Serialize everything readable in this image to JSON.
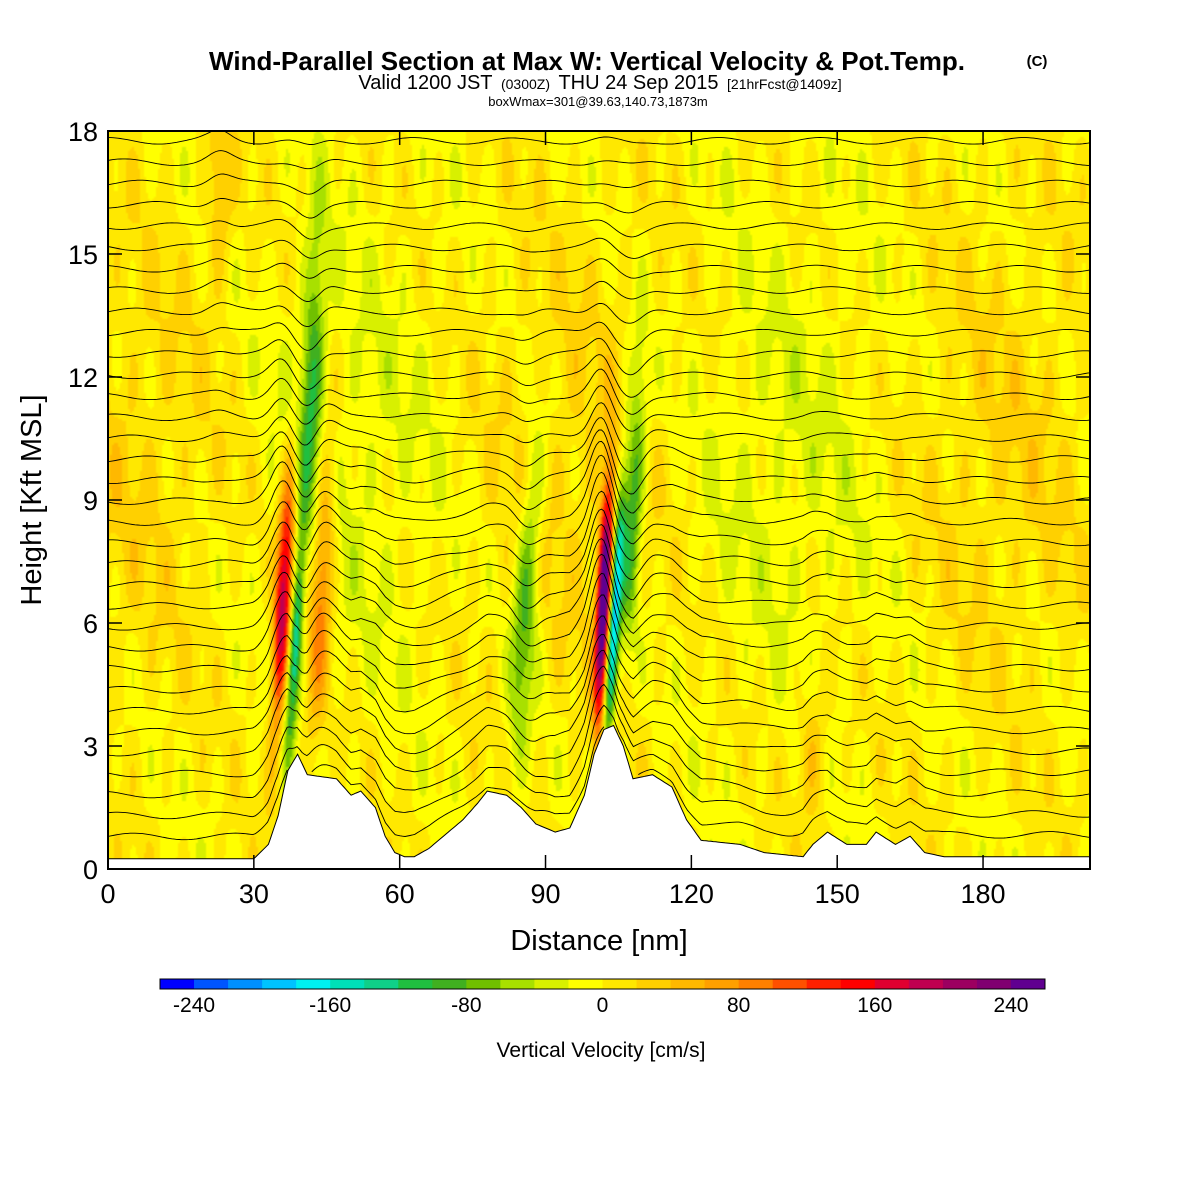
{
  "chart_data": {
    "type": "heatmap",
    "title": "Wind-Parallel Section at Max W: Vertical Velocity & Pot.Temp.",
    "title_mark": "(C)",
    "subtitle": {
      "prefix": "Valid 1200 JST",
      "utc": "(0300Z)",
      "date": "THU 24 Sep 2015",
      "fcst": "[21hrFcst@1409z]"
    },
    "box_note": "boxWmax=301@39.63,140.73,1873m",
    "xlabel": "Distance [nm]",
    "ylabel": "Height [Kft MSL]",
    "xlim": [
      0,
      202
    ],
    "ylim": [
      0,
      18
    ],
    "x_ticks": [
      0,
      30,
      60,
      90,
      120,
      150,
      180
    ],
    "y_ticks": [
      0,
      3,
      6,
      9,
      12,
      15,
      18
    ],
    "colorbar": {
      "label": "Vertical Velocity [cm/s]",
      "range": [
        -260,
        260
      ],
      "step": 20,
      "tick_values": [
        -240,
        -160,
        -80,
        0,
        80,
        160,
        240
      ],
      "tick_labels": [
        "-240",
        "-160",
        "-80",
        "0",
        "80",
        "160",
        "240"
      ],
      "colors": [
        "#0000ff",
        "#0055ff",
        "#0090ff",
        "#00c3ff",
        "#00f0f0",
        "#00e0b8",
        "#10d088",
        "#20bf40",
        "#40b020",
        "#70c000",
        "#a8e000",
        "#d8f000",
        "#ffff00",
        "#ffe800",
        "#ffd000",
        "#ffb800",
        "#ffa000",
        "#ff8000",
        "#ff5000",
        "#ff2000",
        "#ff0000",
        "#e00030",
        "#c00050",
        "#9c0060",
        "#800070",
        "#600090"
      ]
    },
    "terrain_kft": [
      [
        0,
        0.25
      ],
      [
        30,
        0.25
      ],
      [
        33,
        0.6
      ],
      [
        35,
        1.3
      ],
      [
        37,
        2.4
      ],
      [
        39,
        2.8
      ],
      [
        41,
        2.3
      ],
      [
        47,
        2.2
      ],
      [
        50,
        1.8
      ],
      [
        52,
        1.9
      ],
      [
        55,
        1.5
      ],
      [
        57,
        0.8
      ],
      [
        59,
        0.4
      ],
      [
        61,
        0.3
      ],
      [
        63,
        0.3
      ],
      [
        66,
        0.5
      ],
      [
        70,
        0.9
      ],
      [
        73,
        1.2
      ],
      [
        76,
        1.6
      ],
      [
        78,
        1.9
      ],
      [
        82,
        1.8
      ],
      [
        85,
        1.5
      ],
      [
        88,
        1.1
      ],
      [
        92,
        0.9
      ],
      [
        95,
        1.0
      ],
      [
        98,
        1.8
      ],
      [
        100,
        2.8
      ],
      [
        102,
        3.4
      ],
      [
        104,
        3.5
      ],
      [
        106,
        3.0
      ],
      [
        108,
        2.2
      ],
      [
        112,
        2.3
      ],
      [
        116,
        2.0
      ],
      [
        119,
        1.2
      ],
      [
        122,
        0.7
      ],
      [
        130,
        0.6
      ],
      [
        135,
        0.4
      ],
      [
        143,
        0.3
      ],
      [
        145,
        0.6
      ],
      [
        148,
        0.9
      ],
      [
        152,
        0.6
      ],
      [
        156,
        0.6
      ],
      [
        158,
        0.9
      ],
      [
        162,
        0.6
      ],
      [
        165,
        0.8
      ],
      [
        168,
        0.4
      ],
      [
        172,
        0.3
      ],
      [
        202,
        0.3
      ]
    ],
    "w_cells": [
      {
        "x": 36,
        "z": 6.5,
        "w": 200,
        "sx": 1.2,
        "sz": 2.2,
        "tilt": 0.45
      },
      {
        "x": 38.5,
        "z": 5.5,
        "w": -140,
        "sx": 0.9,
        "sz": 1.8,
        "tilt": 0.5
      },
      {
        "x": 44,
        "z": 7.0,
        "w": 100,
        "sx": 1.6,
        "sz": 2.5,
        "tilt": 0.4
      },
      {
        "x": 42,
        "z": 12.0,
        "w": -90,
        "sx": 1.6,
        "sz": 2.6,
        "tilt": 0.3
      },
      {
        "x": 102,
        "z": 6.5,
        "w": 300,
        "sx": 1.0,
        "sz": 2.0,
        "tilt": 0.35
      },
      {
        "x": 104,
        "z": 6.0,
        "w": -200,
        "sx": 0.9,
        "sz": 2.2,
        "tilt": 0.5
      },
      {
        "x": 86,
        "z": 6.5,
        "w": -90,
        "sx": 1.8,
        "sz": 2.8,
        "tilt": 0.5
      },
      {
        "x": 108,
        "z": 9.0,
        "w": -110,
        "sx": 1.5,
        "sz": 2.4,
        "tilt": 0.4
      },
      {
        "x": 23,
        "z": 16.5,
        "w": 45,
        "sx": 1.8,
        "sz": 1.5,
        "tilt": 0.0
      },
      {
        "x": 145,
        "z": 3.0,
        "w": 45,
        "sx": 2.2,
        "sz": 1.2,
        "tilt": 0.0
      }
    ]
  }
}
